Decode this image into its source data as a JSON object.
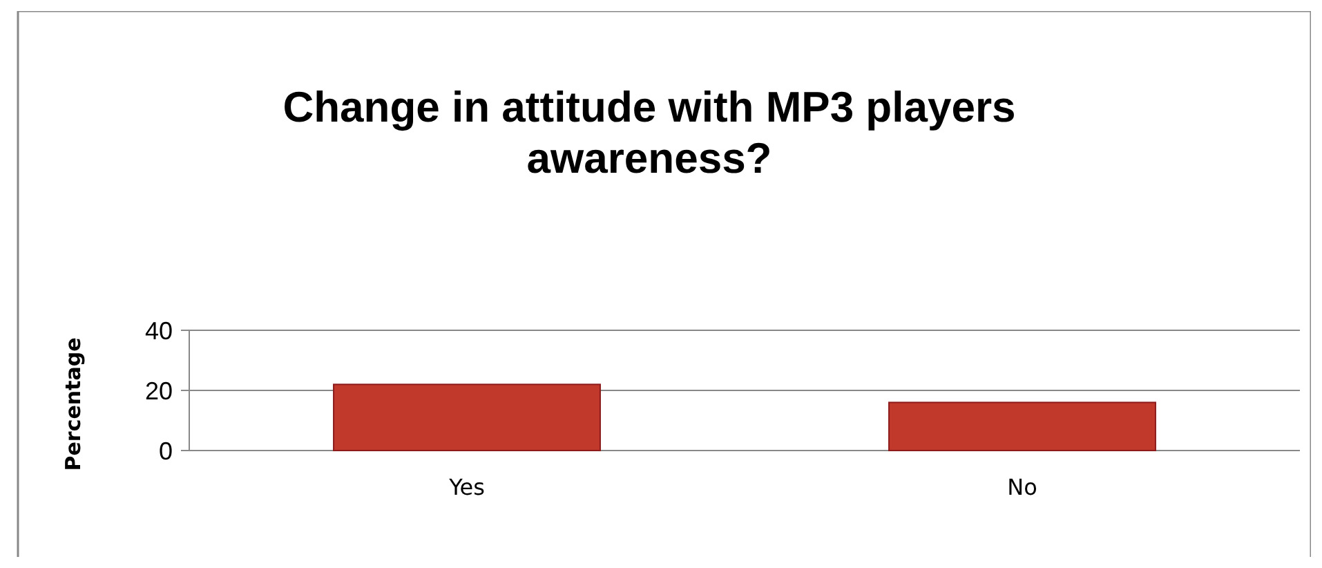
{
  "chart_data": {
    "type": "bar",
    "title": "Change in attitude with MP3 players\n\nawareness?",
    "ylabel": "Percentage",
    "categories": [
      "Yes",
      "No"
    ],
    "values": [
      22,
      16
    ],
    "color": "#c0392b",
    "ylim": [
      0,
      40
    ],
    "yticks": [
      0,
      20,
      40
    ],
    "grid": "y"
  }
}
